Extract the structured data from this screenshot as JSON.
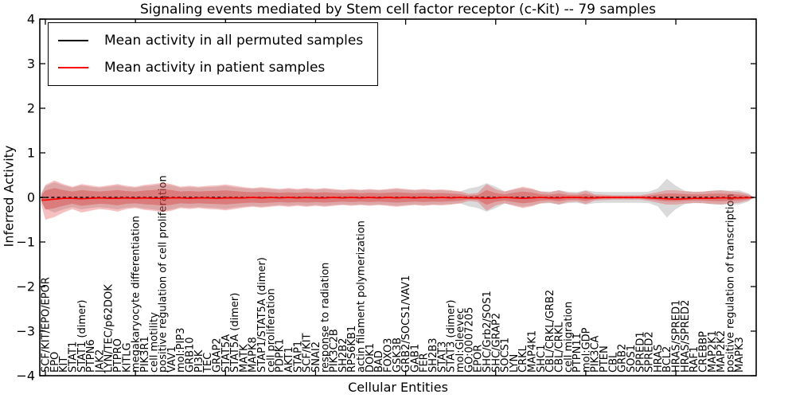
{
  "title": "Signaling events mediated by Stem cell factor receptor (c-Kit) -- 79 samples",
  "legend": [
    {
      "label": "Mean activity in all permuted samples",
      "color": "#000000"
    },
    {
      "label": "Mean activity in patient samples",
      "color": "#ff0000"
    }
  ],
  "y_axis": {
    "label": "Inferred Activity",
    "tick_labels": [
      "4",
      "3",
      "2",
      "1",
      "0",
      "−1",
      "−2",
      "−3",
      "−4"
    ],
    "tick_values": [
      4,
      3,
      2,
      1,
      0,
      -1,
      -2,
      -3,
      -4
    ]
  },
  "x_axis": {
    "label": "Cellular Entities"
  },
  "colors": {
    "patient_line": "#ff0000",
    "permuted_line": "#000000",
    "patient_band_outer": "rgba(230,60,60,0.32)",
    "patient_band_inner": "rgba(215,45,45,0.35)",
    "permuted_band": "rgba(120,120,120,0.27)"
  },
  "chart_data": {
    "type": "line",
    "title": "Signaling events mediated by Stem cell factor receptor (c-Kit) -- 79 samples",
    "xlabel": "Cellular Entities",
    "ylabel": "Inferred Activity",
    "ylim": [
      -4,
      4
    ],
    "grid": false,
    "legend_position": "upper left",
    "categories": [
      "SCF/KIT/EPO/EPOR",
      "EPO",
      "KIT",
      "STAT1",
      "STAT1 (dimer)",
      "PTPN6",
      "JAK2",
      "LYN/TEC/p62DOK",
      "PTPRO",
      "KITLG",
      "megakaryocyte differentiation",
      "PIK3R1",
      "cell motility",
      "positive regulation of cell proliferation",
      "VAV1",
      "mol:PIP3",
      "GRB10",
      "PI3K",
      "TEC",
      "GRAP2",
      "STAT5A",
      "STAT5A (dimer)",
      "MATK",
      "MAPK8",
      "STAP1/STAT5A (dimer)",
      "cell proliferation",
      "PDPK1",
      "AKT1",
      "STAP1",
      "SCF/KIT",
      "SNAI2",
      "response to radiation",
      "PIK3C2B",
      "SH2B2",
      "RPS6KB1",
      "actin filament polymerization",
      "DOK1",
      "BAD",
      "FOXO3",
      "GSK3B",
      "GRB2/SOCS1/VAV1",
      "GAB1",
      "FER",
      "SH2B3",
      "STAT3",
      "STAT3 (dimer)",
      "mol:Gleevec",
      "GO:0007205",
      "EPOR",
      "SHC/Grb2/SOS1",
      "SHC/GRAP2",
      "SOCS1",
      "LYN",
      "CRKL",
      "MAP4K1",
      "SHC1",
      "CBL/CRKL/GRB2",
      "CBL/CRKL",
      "cell migration",
      "PTPN11",
      "mol:GDP",
      "PIK3CA",
      "PTEN",
      "CBL",
      "GRB2",
      "SOS1",
      "SPRED1",
      "SPRED2",
      "HRAS",
      "BCL2",
      "HRAS/SPRED1",
      "HRAS/SPRED2",
      "RAF1",
      "CREBBP",
      "MAP2K1",
      "MAP2K2",
      "positive regulation of transcription",
      "MAPK3"
    ],
    "series": [
      {
        "name": "Mean activity in all permuted samples",
        "color": "#000000",
        "style": "dashed",
        "values": [
          0,
          0,
          0,
          0,
          0,
          0,
          0,
          0,
          0,
          0,
          0,
          0,
          0,
          0,
          0,
          0,
          0,
          0,
          0,
          0,
          0,
          0,
          0,
          0,
          0,
          0,
          0,
          0,
          0,
          0,
          0,
          0,
          0,
          0,
          0,
          0,
          0,
          0,
          0,
          0,
          0,
          0,
          0,
          0,
          0,
          0,
          0,
          0,
          0,
          0,
          0,
          0,
          0,
          0,
          0,
          0,
          0,
          0,
          0,
          0,
          0,
          0,
          0,
          0,
          0,
          0,
          0,
          0,
          0,
          0,
          0,
          0,
          0,
          0,
          0,
          0,
          0,
          0
        ]
      },
      {
        "name": "Mean activity in patient samples",
        "color": "#ff0000",
        "style": "solid",
        "values": [
          -0.06,
          -0.04,
          -0.02,
          -0.02,
          -0.03,
          -0.02,
          -0.01,
          -0.02,
          -0.02,
          -0.01,
          -0.02,
          -0.01,
          -0.02,
          -0.02,
          -0.01,
          -0.01,
          -0.02,
          -0.01,
          -0.01,
          -0.02,
          -0.01,
          -0.01,
          -0.01,
          0,
          -0.01,
          0,
          -0.01,
          0,
          -0.01,
          0,
          -0.01,
          -0.01,
          0,
          -0.01,
          0,
          -0.01,
          0,
          -0.01,
          0,
          -0.01,
          0,
          -0.01,
          0,
          -0.01,
          0,
          -0.01,
          0,
          -0.01,
          -0.01,
          -0.02,
          -0.01,
          0,
          -0.01,
          -0.02,
          -0.01,
          0,
          -0.01,
          -0.01,
          0,
          0,
          -0.01,
          -0.01,
          0,
          0,
          0,
          0,
          0,
          -0.01,
          -0.02,
          -0.03,
          -0.04,
          -0.03,
          -0.02,
          -0.02,
          -0.02,
          -0.01,
          -0.01,
          -0.01
        ]
      }
    ],
    "bands": {
      "patient_outer": {
        "upper": [
          0.28,
          0.38,
          0.3,
          0.24,
          0.3,
          0.27,
          0.24,
          0.27,
          0.3,
          0.26,
          0.24,
          0.28,
          0.3,
          0.33,
          0.3,
          0.24,
          0.26,
          0.24,
          0.26,
          0.27,
          0.29,
          0.26,
          0.23,
          0.21,
          0.23,
          0.21,
          0.19,
          0.21,
          0.19,
          0.21,
          0.19,
          0.21,
          0.19,
          0.17,
          0.19,
          0.17,
          0.19,
          0.17,
          0.19,
          0.21,
          0.19,
          0.17,
          0.19,
          0.17,
          0.18,
          0.16,
          0.14,
          0.08,
          0.1,
          0.3,
          0.18,
          0.13,
          0.19,
          0.24,
          0.2,
          0.13,
          0.11,
          0.16,
          0.1,
          0.09,
          0.15,
          0.07,
          0.06,
          0.05,
          0.05,
          0.05,
          0.05,
          0.08,
          0.12,
          0.16,
          0.16,
          0.14,
          0.12,
          0.13,
          0.15,
          0.16,
          0.14,
          0.12
        ],
        "lower": [
          -0.5,
          -0.44,
          -0.34,
          -0.26,
          -0.34,
          -0.3,
          -0.26,
          -0.28,
          -0.32,
          -0.26,
          -0.24,
          -0.28,
          -0.3,
          -0.33,
          -0.3,
          -0.24,
          -0.26,
          -0.24,
          -0.26,
          -0.27,
          -0.29,
          -0.26,
          -0.23,
          -0.21,
          -0.23,
          -0.21,
          -0.19,
          -0.21,
          -0.19,
          -0.21,
          -0.19,
          -0.21,
          -0.19,
          -0.17,
          -0.19,
          -0.17,
          -0.19,
          -0.17,
          -0.19,
          -0.21,
          -0.19,
          -0.17,
          -0.19,
          -0.17,
          -0.18,
          -0.16,
          -0.14,
          -0.08,
          -0.1,
          -0.3,
          -0.18,
          -0.13,
          -0.19,
          -0.24,
          -0.2,
          -0.13,
          -0.11,
          -0.16,
          -0.1,
          -0.09,
          -0.15,
          -0.07,
          -0.06,
          -0.05,
          -0.05,
          -0.05,
          -0.05,
          -0.08,
          -0.12,
          -0.16,
          -0.16,
          -0.14,
          -0.12,
          -0.13,
          -0.15,
          -0.16,
          -0.14,
          -0.12
        ]
      },
      "patient_inner_scale": 0.55,
      "permuted": {
        "upper": [
          0.25,
          0.34,
          0.27,
          0.22,
          0.27,
          0.24,
          0.22,
          0.24,
          0.27,
          0.23,
          0.22,
          0.25,
          0.27,
          0.3,
          0.27,
          0.22,
          0.23,
          0.22,
          0.23,
          0.24,
          0.26,
          0.23,
          0.21,
          0.19,
          0.21,
          0.19,
          0.17,
          0.19,
          0.17,
          0.19,
          0.17,
          0.19,
          0.17,
          0.16,
          0.17,
          0.16,
          0.17,
          0.16,
          0.17,
          0.19,
          0.17,
          0.16,
          0.17,
          0.16,
          0.16,
          0.15,
          0.13,
          0.2,
          0.24,
          0.32,
          0.24,
          0.14,
          0.17,
          0.21,
          0.18,
          0.14,
          0.13,
          0.16,
          0.13,
          0.12,
          0.16,
          0.13,
          0.12,
          0.12,
          0.12,
          0.12,
          0.12,
          0.13,
          0.2,
          0.42,
          0.26,
          0.15,
          0.13,
          0.13,
          0.15,
          0.16,
          0.15,
          0.16
        ],
        "lower": [
          -0.25,
          -0.34,
          -0.27,
          -0.22,
          -0.27,
          -0.24,
          -0.22,
          -0.24,
          -0.27,
          -0.23,
          -0.22,
          -0.25,
          -0.27,
          -0.3,
          -0.27,
          -0.22,
          -0.23,
          -0.22,
          -0.23,
          -0.24,
          -0.26,
          -0.23,
          -0.21,
          -0.19,
          -0.21,
          -0.19,
          -0.17,
          -0.19,
          -0.17,
          -0.19,
          -0.17,
          -0.19,
          -0.17,
          -0.16,
          -0.17,
          -0.16,
          -0.17,
          -0.16,
          -0.17,
          -0.19,
          -0.17,
          -0.16,
          -0.17,
          -0.16,
          -0.16,
          -0.15,
          -0.13,
          -0.2,
          -0.24,
          -0.32,
          -0.24,
          -0.14,
          -0.17,
          -0.21,
          -0.18,
          -0.14,
          -0.13,
          -0.16,
          -0.13,
          -0.12,
          -0.16,
          -0.13,
          -0.12,
          -0.12,
          -0.12,
          -0.12,
          -0.12,
          -0.13,
          -0.2,
          -0.45,
          -0.26,
          -0.15,
          -0.13,
          -0.13,
          -0.15,
          -0.16,
          -0.15,
          -0.16
        ]
      }
    }
  }
}
